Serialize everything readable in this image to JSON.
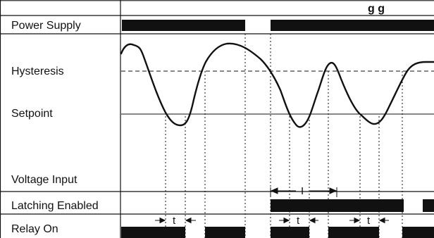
{
  "diagram": {
    "title_fragment": "g      g",
    "row_labels": {
      "power_supply": "Power Supply",
      "hysteresis": "Hysteresis",
      "setpoint": "Setpoint",
      "voltage_input": "Voltage Input",
      "latching_enabled": "Latching Enabled",
      "relay_on": "Relay On"
    },
    "timing_labels": {
      "delay_1": "t",
      "delay_2": "t",
      "delay_3": "t",
      "interval": "I"
    }
  }
}
